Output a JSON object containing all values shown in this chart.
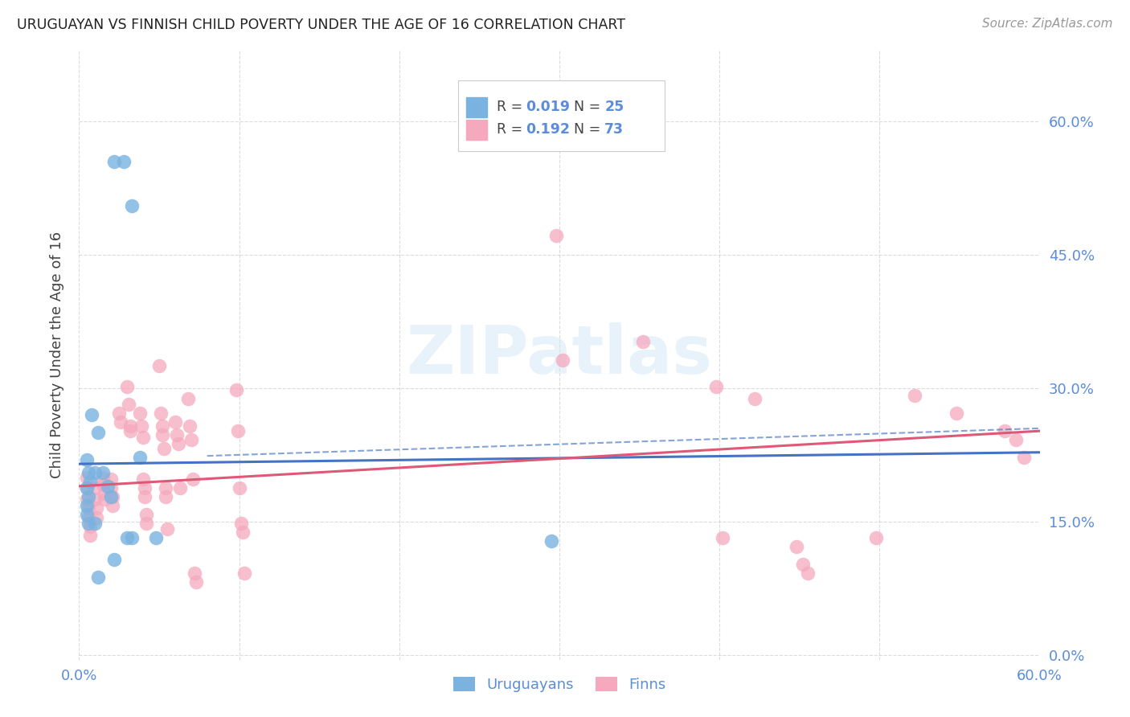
{
  "title": "URUGUAYAN VS FINNISH CHILD POVERTY UNDER THE AGE OF 16 CORRELATION CHART",
  "source": "Source: ZipAtlas.com",
  "ylabel": "Child Poverty Under the Age of 16",
  "xlim": [
    0.0,
    0.6
  ],
  "ylim": [
    -0.005,
    0.68
  ],
  "yticks": [
    0.0,
    0.15,
    0.3,
    0.45,
    0.6
  ],
  "xticks": [
    0.0,
    0.1,
    0.2,
    0.3,
    0.4,
    0.5,
    0.6
  ],
  "color_uruguayan": "#7ab3e0",
  "color_finn": "#f5a8be",
  "color_text_blue": "#5b8dd9",
  "color_line_blue": "#4472c4",
  "color_line_pink": "#e05878",
  "color_grid": "#cccccc",
  "uruguayan_points": [
    [
      0.022,
      0.555
    ],
    [
      0.028,
      0.555
    ],
    [
      0.033,
      0.505
    ],
    [
      0.008,
      0.27
    ],
    [
      0.012,
      0.25
    ],
    [
      0.005,
      0.22
    ],
    [
      0.006,
      0.205
    ],
    [
      0.007,
      0.195
    ],
    [
      0.01,
      0.205
    ],
    [
      0.005,
      0.188
    ],
    [
      0.006,
      0.178
    ],
    [
      0.005,
      0.168
    ],
    [
      0.005,
      0.158
    ],
    [
      0.006,
      0.148
    ],
    [
      0.01,
      0.148
    ],
    [
      0.015,
      0.205
    ],
    [
      0.018,
      0.19
    ],
    [
      0.02,
      0.178
    ],
    [
      0.03,
      0.132
    ],
    [
      0.048,
      0.132
    ],
    [
      0.022,
      0.108
    ],
    [
      0.012,
      0.088
    ],
    [
      0.038,
      0.222
    ],
    [
      0.033,
      0.132
    ],
    [
      0.295,
      0.128
    ]
  ],
  "finn_points": [
    [
      0.005,
      0.2
    ],
    [
      0.005,
      0.188
    ],
    [
      0.005,
      0.175
    ],
    [
      0.006,
      0.165
    ],
    [
      0.006,
      0.155
    ],
    [
      0.007,
      0.145
    ],
    [
      0.007,
      0.135
    ],
    [
      0.01,
      0.188
    ],
    [
      0.01,
      0.175
    ],
    [
      0.011,
      0.165
    ],
    [
      0.011,
      0.155
    ],
    [
      0.015,
      0.2
    ],
    [
      0.015,
      0.192
    ],
    [
      0.016,
      0.182
    ],
    [
      0.016,
      0.175
    ],
    [
      0.02,
      0.198
    ],
    [
      0.02,
      0.188
    ],
    [
      0.021,
      0.178
    ],
    [
      0.021,
      0.168
    ],
    [
      0.025,
      0.272
    ],
    [
      0.026,
      0.262
    ],
    [
      0.03,
      0.302
    ],
    [
      0.031,
      0.282
    ],
    [
      0.032,
      0.258
    ],
    [
      0.032,
      0.252
    ],
    [
      0.038,
      0.272
    ],
    [
      0.039,
      0.258
    ],
    [
      0.04,
      0.245
    ],
    [
      0.04,
      0.198
    ],
    [
      0.041,
      0.188
    ],
    [
      0.041,
      0.178
    ],
    [
      0.042,
      0.158
    ],
    [
      0.042,
      0.148
    ],
    [
      0.05,
      0.325
    ],
    [
      0.051,
      0.272
    ],
    [
      0.052,
      0.258
    ],
    [
      0.052,
      0.248
    ],
    [
      0.053,
      0.232
    ],
    [
      0.054,
      0.188
    ],
    [
      0.054,
      0.178
    ],
    [
      0.055,
      0.142
    ],
    [
      0.06,
      0.262
    ],
    [
      0.061,
      0.248
    ],
    [
      0.062,
      0.238
    ],
    [
      0.063,
      0.188
    ],
    [
      0.068,
      0.288
    ],
    [
      0.069,
      0.258
    ],
    [
      0.07,
      0.242
    ],
    [
      0.071,
      0.198
    ],
    [
      0.072,
      0.092
    ],
    [
      0.073,
      0.082
    ],
    [
      0.098,
      0.298
    ],
    [
      0.099,
      0.252
    ],
    [
      0.1,
      0.188
    ],
    [
      0.101,
      0.148
    ],
    [
      0.102,
      0.138
    ],
    [
      0.103,
      0.092
    ],
    [
      0.298,
      0.472
    ],
    [
      0.302,
      0.332
    ],
    [
      0.352,
      0.352
    ],
    [
      0.398,
      0.302
    ],
    [
      0.402,
      0.132
    ],
    [
      0.422,
      0.288
    ],
    [
      0.448,
      0.122
    ],
    [
      0.452,
      0.102
    ],
    [
      0.455,
      0.092
    ],
    [
      0.498,
      0.132
    ],
    [
      0.522,
      0.292
    ],
    [
      0.548,
      0.272
    ],
    [
      0.578,
      0.252
    ],
    [
      0.585,
      0.242
    ],
    [
      0.59,
      0.222
    ]
  ],
  "uruguayan_line_x": [
    0.0,
    0.6
  ],
  "uruguayan_line_y": [
    0.215,
    0.228
  ],
  "finn_line_x": [
    0.0,
    0.6
  ],
  "finn_line_y": [
    0.19,
    0.252
  ],
  "dashed_line_x": [
    0.08,
    0.6
  ],
  "dashed_line_y": [
    0.224,
    0.255
  ],
  "background_color": "#ffffff",
  "watermark": "ZIPatlas"
}
